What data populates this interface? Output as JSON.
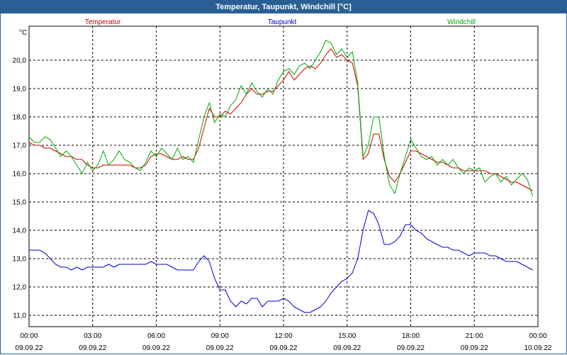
{
  "chart_data": {
    "type": "line",
    "title": "Temperatur, Taupunkt, Windchill [°C]",
    "ylabel": "°C",
    "xlabel": "",
    "ylim": [
      10.6,
      21.2
    ],
    "xlim": [
      0,
      24
    ],
    "grid": true,
    "legend_placement": "top",
    "y_ticks": [
      11.0,
      12.0,
      13.0,
      14.0,
      15.0,
      16.0,
      17.0,
      18.0,
      19.0,
      20.0
    ],
    "y_tick_labels": [
      "11,0",
      "12,0",
      "13,0",
      "14,0",
      "15,0",
      "16,0",
      "17,0",
      "18,0",
      "19,0",
      "20,0"
    ],
    "x_ticks": [
      {
        "time": "00:00",
        "date": "09.09.22"
      },
      {
        "time": "03:00",
        "date": "09.09.22"
      },
      {
        "time": "06:00",
        "date": "09.09.22"
      },
      {
        "time": "09:00",
        "date": "09.09.22"
      },
      {
        "time": "12:00",
        "date": "09.09.22"
      },
      {
        "time": "15:00",
        "date": "09.09.22"
      },
      {
        "time": "18:00",
        "date": "09.09.22"
      },
      {
        "time": "21:00",
        "date": "09.09.22"
      },
      {
        "time": "00:00",
        "date": "10.09.22"
      }
    ],
    "series": [
      {
        "name": "Temperatur",
        "color": "#cc0000",
        "points": [
          [
            0.0,
            17.1
          ],
          [
            0.25,
            17.0
          ],
          [
            0.5,
            17.0
          ],
          [
            0.75,
            16.9
          ],
          [
            1.0,
            16.9
          ],
          [
            1.25,
            16.8
          ],
          [
            1.5,
            16.7
          ],
          [
            1.75,
            16.6
          ],
          [
            2.0,
            16.6
          ],
          [
            2.25,
            16.5
          ],
          [
            2.5,
            16.5
          ],
          [
            2.75,
            16.3
          ],
          [
            3.0,
            16.2
          ],
          [
            3.25,
            16.2
          ],
          [
            3.5,
            16.3
          ],
          [
            3.75,
            16.3
          ],
          [
            4.0,
            16.3
          ],
          [
            4.25,
            16.3
          ],
          [
            4.5,
            16.3
          ],
          [
            4.75,
            16.3
          ],
          [
            5.0,
            16.2
          ],
          [
            5.25,
            16.2
          ],
          [
            5.5,
            16.3
          ],
          [
            5.75,
            16.6
          ],
          [
            6.0,
            16.7
          ],
          [
            6.25,
            16.7
          ],
          [
            6.5,
            16.6
          ],
          [
            6.75,
            16.5
          ],
          [
            7.0,
            16.5
          ],
          [
            7.25,
            16.6
          ],
          [
            7.5,
            16.5
          ],
          [
            7.75,
            16.5
          ],
          [
            8.0,
            16.9
          ],
          [
            8.25,
            17.6
          ],
          [
            8.5,
            18.3
          ],
          [
            8.75,
            18.0
          ],
          [
            9.0,
            18.0
          ],
          [
            9.25,
            18.2
          ],
          [
            9.5,
            18.1
          ],
          [
            9.75,
            18.3
          ],
          [
            10.0,
            18.5
          ],
          [
            10.25,
            18.8
          ],
          [
            10.5,
            19.0
          ],
          [
            10.75,
            18.8
          ],
          [
            11.0,
            18.8
          ],
          [
            11.25,
            18.9
          ],
          [
            11.5,
            18.9
          ],
          [
            11.75,
            19.1
          ],
          [
            12.0,
            19.3
          ],
          [
            12.25,
            19.6
          ],
          [
            12.5,
            19.3
          ],
          [
            12.75,
            19.5
          ],
          [
            13.0,
            19.7
          ],
          [
            13.25,
            19.8
          ],
          [
            13.5,
            19.7
          ],
          [
            13.75,
            19.9
          ],
          [
            14.0,
            20.2
          ],
          [
            14.25,
            20.4
          ],
          [
            14.5,
            20.1
          ],
          [
            14.75,
            20.2
          ],
          [
            15.0,
            20.0
          ],
          [
            15.25,
            19.9
          ],
          [
            15.5,
            19.1
          ],
          [
            15.75,
            16.5
          ],
          [
            16.0,
            16.7
          ],
          [
            16.25,
            17.4
          ],
          [
            16.5,
            17.4
          ],
          [
            16.75,
            16.5
          ],
          [
            17.0,
            15.9
          ],
          [
            17.25,
            15.7
          ],
          [
            17.5,
            16.0
          ],
          [
            17.75,
            16.4
          ],
          [
            18.0,
            16.8
          ],
          [
            18.25,
            16.8
          ],
          [
            18.5,
            16.7
          ],
          [
            18.75,
            16.6
          ],
          [
            19.0,
            16.5
          ],
          [
            19.25,
            16.4
          ],
          [
            19.5,
            16.4
          ],
          [
            19.75,
            16.3
          ],
          [
            20.0,
            16.2
          ],
          [
            20.25,
            16.2
          ],
          [
            20.5,
            16.1
          ],
          [
            20.75,
            16.1
          ],
          [
            21.0,
            16.1
          ],
          [
            21.25,
            16.1
          ],
          [
            21.5,
            16.1
          ],
          [
            21.75,
            16.0
          ],
          [
            22.0,
            16.0
          ],
          [
            22.25,
            15.9
          ],
          [
            22.5,
            15.8
          ],
          [
            22.75,
            15.7
          ],
          [
            23.0,
            15.7
          ],
          [
            23.25,
            15.6
          ],
          [
            23.5,
            15.5
          ],
          [
            23.75,
            15.4
          ]
        ]
      },
      {
        "name": "Taupunkt",
        "color": "#0000cc",
        "points": [
          [
            0.0,
            13.3
          ],
          [
            0.25,
            13.3
          ],
          [
            0.5,
            13.3
          ],
          [
            0.75,
            13.2
          ],
          [
            1.0,
            13.0
          ],
          [
            1.25,
            12.8
          ],
          [
            1.5,
            12.7
          ],
          [
            1.75,
            12.7
          ],
          [
            2.0,
            12.6
          ],
          [
            2.25,
            12.7
          ],
          [
            2.5,
            12.6
          ],
          [
            2.75,
            12.7
          ],
          [
            3.0,
            12.7
          ],
          [
            3.25,
            12.7
          ],
          [
            3.5,
            12.7
          ],
          [
            3.75,
            12.8
          ],
          [
            4.0,
            12.7
          ],
          [
            4.25,
            12.8
          ],
          [
            4.5,
            12.8
          ],
          [
            4.75,
            12.8
          ],
          [
            5.0,
            12.8
          ],
          [
            5.25,
            12.8
          ],
          [
            5.5,
            12.8
          ],
          [
            5.75,
            12.9
          ],
          [
            6.0,
            12.8
          ],
          [
            6.25,
            12.8
          ],
          [
            6.5,
            12.8
          ],
          [
            6.75,
            12.7
          ],
          [
            7.0,
            12.6
          ],
          [
            7.25,
            12.6
          ],
          [
            7.5,
            12.6
          ],
          [
            7.75,
            12.6
          ],
          [
            8.0,
            12.9
          ],
          [
            8.25,
            13.1
          ],
          [
            8.5,
            12.9
          ],
          [
            8.75,
            12.3
          ],
          [
            9.0,
            11.9
          ],
          [
            9.25,
            11.9
          ],
          [
            9.5,
            11.5
          ],
          [
            9.75,
            11.3
          ],
          [
            10.0,
            11.5
          ],
          [
            10.25,
            11.4
          ],
          [
            10.5,
            11.6
          ],
          [
            10.75,
            11.6
          ],
          [
            11.0,
            11.3
          ],
          [
            11.25,
            11.5
          ],
          [
            11.5,
            11.5
          ],
          [
            11.75,
            11.5
          ],
          [
            12.0,
            11.6
          ],
          [
            12.25,
            11.5
          ],
          [
            12.5,
            11.3
          ],
          [
            12.75,
            11.2
          ],
          [
            13.0,
            11.1
          ],
          [
            13.25,
            11.1
          ],
          [
            13.5,
            11.2
          ],
          [
            13.75,
            11.3
          ],
          [
            14.0,
            11.5
          ],
          [
            14.25,
            11.8
          ],
          [
            14.5,
            12.0
          ],
          [
            14.75,
            12.2
          ],
          [
            15.0,
            12.3
          ],
          [
            15.25,
            12.5
          ],
          [
            15.5,
            13.0
          ],
          [
            15.75,
            14.0
          ],
          [
            16.0,
            14.7
          ],
          [
            16.25,
            14.6
          ],
          [
            16.5,
            14.2
          ],
          [
            16.75,
            13.5
          ],
          [
            17.0,
            13.5
          ],
          [
            17.25,
            13.6
          ],
          [
            17.5,
            13.8
          ],
          [
            17.75,
            14.2
          ],
          [
            18.0,
            14.2
          ],
          [
            18.25,
            14.0
          ],
          [
            18.5,
            13.9
          ],
          [
            18.75,
            13.7
          ],
          [
            19.0,
            13.6
          ],
          [
            19.25,
            13.5
          ],
          [
            19.5,
            13.4
          ],
          [
            19.75,
            13.4
          ],
          [
            20.0,
            13.3
          ],
          [
            20.25,
            13.3
          ],
          [
            20.5,
            13.2
          ],
          [
            20.75,
            13.1
          ],
          [
            21.0,
            13.2
          ],
          [
            21.25,
            13.2
          ],
          [
            21.5,
            13.2
          ],
          [
            21.75,
            13.1
          ],
          [
            22.0,
            13.1
          ],
          [
            22.25,
            13.0
          ],
          [
            22.5,
            12.9
          ],
          [
            22.75,
            12.9
          ],
          [
            23.0,
            12.9
          ],
          [
            23.25,
            12.8
          ],
          [
            23.5,
            12.7
          ],
          [
            23.75,
            12.6
          ]
        ]
      },
      {
        "name": "Windchill",
        "color": "#00aa00",
        "points": [
          [
            0.0,
            17.3
          ],
          [
            0.25,
            17.1
          ],
          [
            0.5,
            17.1
          ],
          [
            0.75,
            17.3
          ],
          [
            1.0,
            17.2
          ],
          [
            1.25,
            16.9
          ],
          [
            1.5,
            16.6
          ],
          [
            1.75,
            16.8
          ],
          [
            2.0,
            16.6
          ],
          [
            2.25,
            16.3
          ],
          [
            2.5,
            16.0
          ],
          [
            2.75,
            16.4
          ],
          [
            3.0,
            16.1
          ],
          [
            3.25,
            16.3
          ],
          [
            3.5,
            16.8
          ],
          [
            3.75,
            16.3
          ],
          [
            4.0,
            16.5
          ],
          [
            4.25,
            16.8
          ],
          [
            4.5,
            16.5
          ],
          [
            4.75,
            16.4
          ],
          [
            5.0,
            16.2
          ],
          [
            5.25,
            16.1
          ],
          [
            5.5,
            16.4
          ],
          [
            5.75,
            16.8
          ],
          [
            6.0,
            16.6
          ],
          [
            6.25,
            16.9
          ],
          [
            6.5,
            16.7
          ],
          [
            6.75,
            16.5
          ],
          [
            7.0,
            16.9
          ],
          [
            7.25,
            16.5
          ],
          [
            7.5,
            16.6
          ],
          [
            7.75,
            16.4
          ],
          [
            8.0,
            17.2
          ],
          [
            8.25,
            18.0
          ],
          [
            8.5,
            18.5
          ],
          [
            8.75,
            17.8
          ],
          [
            9.0,
            18.1
          ],
          [
            9.25,
            18.0
          ],
          [
            9.5,
            18.4
          ],
          [
            9.75,
            18.6
          ],
          [
            10.0,
            19.1
          ],
          [
            10.25,
            18.8
          ],
          [
            10.5,
            19.2
          ],
          [
            10.75,
            18.9
          ],
          [
            11.0,
            18.7
          ],
          [
            11.25,
            19.0
          ],
          [
            11.5,
            18.8
          ],
          [
            11.75,
            19.3
          ],
          [
            12.0,
            19.6
          ],
          [
            12.25,
            19.7
          ],
          [
            12.5,
            19.5
          ],
          [
            12.75,
            19.8
          ],
          [
            13.0,
            19.9
          ],
          [
            13.25,
            19.7
          ],
          [
            13.5,
            20.0
          ],
          [
            13.75,
            20.3
          ],
          [
            14.0,
            20.7
          ],
          [
            14.25,
            20.6
          ],
          [
            14.5,
            20.2
          ],
          [
            14.75,
            20.4
          ],
          [
            15.0,
            20.1
          ],
          [
            15.25,
            20.3
          ],
          [
            15.5,
            19.2
          ],
          [
            15.75,
            16.6
          ],
          [
            16.0,
            17.0
          ],
          [
            16.25,
            18.0
          ],
          [
            16.5,
            18.0
          ],
          [
            16.75,
            16.6
          ],
          [
            17.0,
            15.6
          ],
          [
            17.25,
            15.3
          ],
          [
            17.5,
            16.0
          ],
          [
            17.75,
            16.6
          ],
          [
            18.0,
            17.2
          ],
          [
            18.25,
            16.9
          ],
          [
            18.5,
            16.6
          ],
          [
            18.75,
            16.5
          ],
          [
            19.0,
            16.6
          ],
          [
            19.25,
            16.3
          ],
          [
            19.5,
            16.5
          ],
          [
            19.75,
            16.3
          ],
          [
            20.0,
            16.5
          ],
          [
            20.25,
            16.2
          ],
          [
            20.5,
            16.0
          ],
          [
            20.75,
            16.2
          ],
          [
            21.0,
            16.1
          ],
          [
            21.25,
            16.2
          ],
          [
            21.5,
            15.7
          ],
          [
            21.75,
            15.9
          ],
          [
            22.0,
            16.0
          ],
          [
            22.25,
            15.7
          ],
          [
            22.5,
            15.9
          ],
          [
            22.75,
            15.6
          ],
          [
            23.0,
            15.8
          ],
          [
            23.25,
            16.0
          ],
          [
            23.5,
            15.8
          ],
          [
            23.75,
            15.2
          ]
        ]
      }
    ]
  }
}
